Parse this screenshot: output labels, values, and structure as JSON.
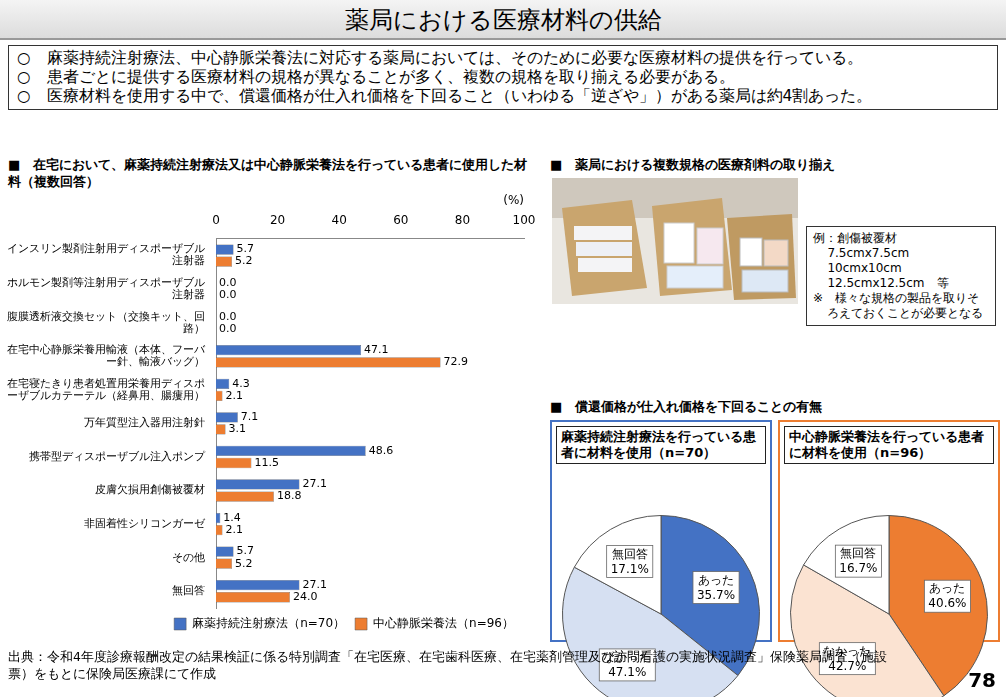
{
  "title": "薬局における医療材料の供給",
  "bullets": [
    "○　麻薬持続注射療法、中心静脈栄養法に対応する薬局においては、そのために必要な医療材料の提供を行っている。",
    "○　患者ごとに提供する医療材料の規格が異なることが多く、複数の規格を取り揃える必要がある。",
    "○　医療材料を使用する中で、償還価格が仕入れ価格を下回ること（いわゆる「逆ざや」）がある薬局は約4割あった。"
  ],
  "chart_data": [
    {
      "type": "bar",
      "title": "■　在宅において、麻薬持続注射療法又は中心静脈栄養法を行っている患者に使用した材料（複数回答）",
      "orientation": "horizontal",
      "categories": [
        "インスリン製剤注射用ディスポーザブル注射器",
        "ホルモン製剤等注射用ディスポーザブル注射器",
        "腹膜透析液交換セット（交換キット、回路）",
        "在宅中心静脈栄養用輸液（本体、フーバー針、輸液バッグ）",
        "在宅寝たきり患者処置用栄養用ディスポーザブルカテーテル（経鼻用、腸瘻用）",
        "万年質型注入器用注射針",
        "携帯型ディスポーザブル注入ポンプ",
        "皮膚欠損用創傷被覆材",
        "非固着性シリコンガーゼ",
        "その他",
        "無回答"
      ],
      "series": [
        {
          "name": "麻薬持続注射療法（n=70）",
          "color": "#4472c4",
          "values": [
            5.7,
            0,
            0,
            47.1,
            4.3,
            7.1,
            48.6,
            27.1,
            1.4,
            5.7,
            27.1
          ],
          "value_labels": [
            "5.7",
            "0.0",
            "0.0",
            "47.1",
            "4.3",
            "7.1",
            "48.6",
            "27.1",
            "1.4",
            "5.7",
            "27.1"
          ]
        },
        {
          "name": "中心静脈栄養法（n=96）",
          "color": "#ed7d31",
          "values": [
            5.2,
            0,
            0,
            72.9,
            2.1,
            3.1,
            11.5,
            18.8,
            2.1,
            5.2,
            24
          ],
          "value_labels": [
            "5.2",
            "0.0",
            "0.0",
            "72.9",
            "2.1",
            "3.1",
            "11.5",
            "18.8",
            "2.1",
            "5.2",
            "24.0"
          ]
        }
      ],
      "xlim": [
        0,
        100
      ],
      "xticks": [
        0,
        20,
        40,
        60,
        80,
        100
      ],
      "xlabel": "(%)",
      "data_labels": true,
      "legend": "bottom",
      "grid": false
    },
    {
      "type": "pie",
      "title": "麻薬持続注射療法を行っている患者に材料を使用（n=70）",
      "categories": [
        "あった",
        "なかった",
        "無回答"
      ],
      "values": [
        35.7,
        47.1,
        17.1
      ],
      "value_labels": [
        "35.7%",
        "47.1%",
        "17.1%"
      ],
      "colors": [
        "#4472c4",
        "#d6e0f2",
        "#ffffff"
      ],
      "data_labels": true
    },
    {
      "type": "pie",
      "title": "中心静脈栄養法を行っている患者に材料を使用（n=96）",
      "categories": [
        "あった",
        "なかった",
        "無回答"
      ],
      "values": [
        40.6,
        42.7,
        16.7
      ],
      "value_labels": [
        "40.6%",
        "42.7%",
        "16.7%"
      ],
      "colors": [
        "#ed7d31",
        "#fbe3d2",
        "#ffffff"
      ],
      "data_labels": true
    }
  ],
  "photo_section": {
    "title": "■　薬局における複数規格の医療剤料の取り揃え",
    "example_heading": "例：創傷被覆材",
    "example_sizes": [
      "7.5cmx7.5cm",
      "10cmx10cm",
      "12.5cmx12.5cm　等"
    ],
    "note": "※　様々な規格の製品を取りそろえておくことが必要となる"
  },
  "pie_section_title": "■　償還価格が仕入れ価格を下回ることの有無",
  "source": "出典：令和4年度診療報酬改定の結果検証に係る特別調査「在宅医療、在宅歯科医療、在宅薬剤管理及び訪問看護の実施状況調査」保険薬局調査（施設票）をもとに保険局医療課にて作成",
  "page_number": "78"
}
